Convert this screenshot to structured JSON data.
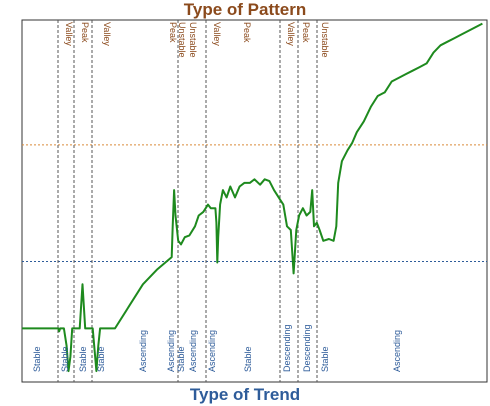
{
  "chart_data": {
    "type": "line",
    "title": "Type of Pattern",
    "xlabel": "Type of Trend",
    "ylabel": "",
    "grid": false,
    "reference_lines": [
      {
        "color": "#D98A3A",
        "style": "dotted"
      },
      {
        "color": "#2E5C9A",
        "style": "dotted"
      }
    ],
    "series": [
      {
        "color": "#1E8A1E",
        "points": [
          [
            0.0,
            0.148
          ],
          [
            0.078,
            0.148
          ],
          [
            0.08,
            0.14
          ],
          [
            0.082,
            0.148
          ],
          [
            0.09,
            0.148
          ],
          [
            0.096,
            0.1
          ],
          [
            0.1,
            0.03
          ],
          [
            0.104,
            0.07
          ],
          [
            0.108,
            0.148
          ],
          [
            0.116,
            0.148
          ],
          [
            0.124,
            0.148
          ],
          [
            0.13,
            0.27
          ],
          [
            0.136,
            0.148
          ],
          [
            0.144,
            0.148
          ],
          [
            0.152,
            0.148
          ],
          [
            0.16,
            0.03
          ],
          [
            0.164,
            0.1
          ],
          [
            0.168,
            0.148
          ],
          [
            0.174,
            0.148
          ],
          [
            0.2,
            0.148
          ],
          [
            0.26,
            0.27
          ],
          [
            0.29,
            0.31
          ],
          [
            0.322,
            0.345
          ],
          [
            0.324,
            0.43
          ],
          [
            0.327,
            0.53
          ],
          [
            0.33,
            0.46
          ],
          [
            0.336,
            0.39
          ],
          [
            0.342,
            0.38
          ],
          [
            0.35,
            0.4
          ],
          [
            0.36,
            0.405
          ],
          [
            0.372,
            0.43
          ],
          [
            0.38,
            0.46
          ],
          [
            0.39,
            0.47
          ],
          [
            0.4,
            0.49
          ],
          [
            0.406,
            0.48
          ],
          [
            0.416,
            0.48
          ],
          [
            0.418,
            0.44
          ],
          [
            0.42,
            0.33
          ],
          [
            0.422,
            0.4
          ],
          [
            0.426,
            0.49
          ],
          [
            0.432,
            0.53
          ],
          [
            0.44,
            0.51
          ],
          [
            0.448,
            0.54
          ],
          [
            0.458,
            0.51
          ],
          [
            0.468,
            0.54
          ],
          [
            0.478,
            0.55
          ],
          [
            0.49,
            0.55
          ],
          [
            0.5,
            0.56
          ],
          [
            0.512,
            0.545
          ],
          [
            0.522,
            0.56
          ],
          [
            0.532,
            0.555
          ],
          [
            0.542,
            0.53
          ],
          [
            0.552,
            0.51
          ],
          [
            0.562,
            0.49
          ],
          [
            0.57,
            0.43
          ],
          [
            0.578,
            0.42
          ],
          [
            0.584,
            0.3
          ],
          [
            0.59,
            0.42
          ],
          [
            0.596,
            0.46
          ],
          [
            0.604,
            0.48
          ],
          [
            0.612,
            0.46
          ],
          [
            0.62,
            0.47
          ],
          [
            0.624,
            0.53
          ],
          [
            0.628,
            0.43
          ],
          [
            0.634,
            0.44
          ],
          [
            0.64,
            0.42
          ],
          [
            0.648,
            0.39
          ],
          [
            0.66,
            0.395
          ],
          [
            0.67,
            0.39
          ],
          [
            0.676,
            0.43
          ],
          [
            0.68,
            0.55
          ],
          [
            0.688,
            0.61
          ],
          [
            0.7,
            0.64
          ],
          [
            0.71,
            0.66
          ],
          [
            0.72,
            0.69
          ],
          [
            0.735,
            0.72
          ],
          [
            0.75,
            0.76
          ],
          [
            0.765,
            0.79
          ],
          [
            0.78,
            0.8
          ],
          [
            0.795,
            0.83
          ],
          [
            0.81,
            0.84
          ],
          [
            0.825,
            0.85
          ],
          [
            0.84,
            0.86
          ],
          [
            0.855,
            0.87
          ],
          [
            0.87,
            0.88
          ],
          [
            0.885,
            0.91
          ],
          [
            0.9,
            0.93
          ],
          [
            0.915,
            0.94
          ],
          [
            0.93,
            0.95
          ],
          [
            0.945,
            0.96
          ],
          [
            0.96,
            0.97
          ],
          [
            0.975,
            0.98
          ],
          [
            0.99,
            0.99
          ]
        ]
      }
    ],
    "segments": [
      {
        "start": 0.0,
        "end": 0.078,
        "trend": "Stable",
        "patterns": []
      },
      {
        "start": 0.078,
        "end": 0.112,
        "trend": "Stable",
        "patterns": [
          "Valley"
        ]
      },
      {
        "start": 0.112,
        "end": 0.15,
        "trend": "Stable",
        "patterns": [
          "Peak"
        ]
      },
      {
        "start": 0.15,
        "end": 0.324,
        "trend": "Stable",
        "patterns": [
          "Valley"
        ]
      },
      {
        "start": 0.324,
        "end": 0.334,
        "trend": "Ascending",
        "patterns": []
      },
      {
        "start": 0.334,
        "end": 0.358,
        "trend": "Ascending",
        "patterns": [
          "Peak",
          "Unstable"
        ]
      },
      {
        "start": 0.358,
        "end": 0.412,
        "trend": "Stable",
        "patterns": [
          "Unstable"
        ]
      },
      {
        "start": 0.412,
        "end": 0.566,
        "trend": "Ascending",
        "patterns": [
          "Valley"
        ]
      },
      {
        "start": 0.566,
        "end": 0.576,
        "trend": "Stable",
        "patterns": [
          "Peak"
        ]
      },
      {
        "start": 0.576,
        "end": 0.634,
        "trend": "Descending",
        "patterns": [
          "Valley"
        ]
      },
      {
        "start": 0.634,
        "end": 0.656,
        "trend": "Descending",
        "patterns": [
          "Peak"
        ]
      },
      {
        "start": 0.656,
        "end": 1.0,
        "trend": "Stable",
        "patterns": [
          "Unstable"
        ]
      }
    ],
    "trend_labels": [
      {
        "text": "Stable",
        "anchor": "seg0"
      },
      {
        "text": "Stable",
        "anchor": "seg1"
      },
      {
        "text": "Stable",
        "anchor": "seg2"
      },
      {
        "text": "Stable",
        "anchor": "seg3a"
      },
      {
        "text": "Ascending",
        "anchor": "seg3b"
      },
      {
        "text": "Ascending",
        "anchor": "seg4"
      },
      {
        "text": "Stable",
        "anchor": "seg5"
      },
      {
        "text": "Ascending",
        "anchor": "seg6"
      },
      {
        "text": "Ascending",
        "anchor": "seg7"
      },
      {
        "text": "Stable",
        "anchor": "seg8"
      },
      {
        "text": "Descending",
        "anchor": "seg9"
      },
      {
        "text": "Descending",
        "anchor": "seg10"
      },
      {
        "text": "Stable",
        "anchor": "seg11"
      },
      {
        "text": "Ascending",
        "anchor": "seg12"
      }
    ],
    "pattern_labels": [
      {
        "text": "Valley",
        "anchor": "p0"
      },
      {
        "text": "Peak",
        "anchor": "p1"
      },
      {
        "text": "Valley",
        "anchor": "p2"
      },
      {
        "text": "Peak",
        "anchor": "p3"
      },
      {
        "text": "Unstable",
        "anchor": "p4"
      },
      {
        "text": "Unstable",
        "anchor": "p5"
      },
      {
        "text": "Valley",
        "anchor": "p6"
      },
      {
        "text": "Peak",
        "anchor": "p7"
      },
      {
        "text": "Valley",
        "anchor": "p8"
      },
      {
        "text": "Peak",
        "anchor": "p9"
      },
      {
        "text": "Unstable",
        "anchor": "p10"
      }
    ],
    "colors": {
      "line": "#1E8A1E",
      "title": "#8B4A1C",
      "xlabel": "#2E5C9A",
      "trend_text": "#2E5C9A",
      "pattern_text": "#8B4A1C",
      "frame": "#333333",
      "divider": "#555555",
      "ref_orange": "#D98A3A",
      "ref_blue": "#2E5C9A"
    }
  }
}
